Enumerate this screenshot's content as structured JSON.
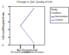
{
  "chart_data": {
    "type": "line",
    "title": "Change in QoL Quality of Life",
    "x_label": "Age (Dichotomized)",
    "y_label": "Estimated Marginal Means",
    "categories": [
      "65 years and older",
      "Less than 65 years"
    ],
    "series": [
      {
        "name": "Intervention",
        "color": "#4b3fb0",
        "values": [
          1,
          5.5
        ]
      },
      {
        "name": "Control",
        "color": "#8a6fc2",
        "values": [
          1,
          -3.5
        ]
      }
    ],
    "ylim": [
      -4,
      6
    ],
    "yticks": [
      -4,
      -2,
      0,
      2,
      4,
      6
    ],
    "legend": "right",
    "legend_title": "Study Condition"
  }
}
